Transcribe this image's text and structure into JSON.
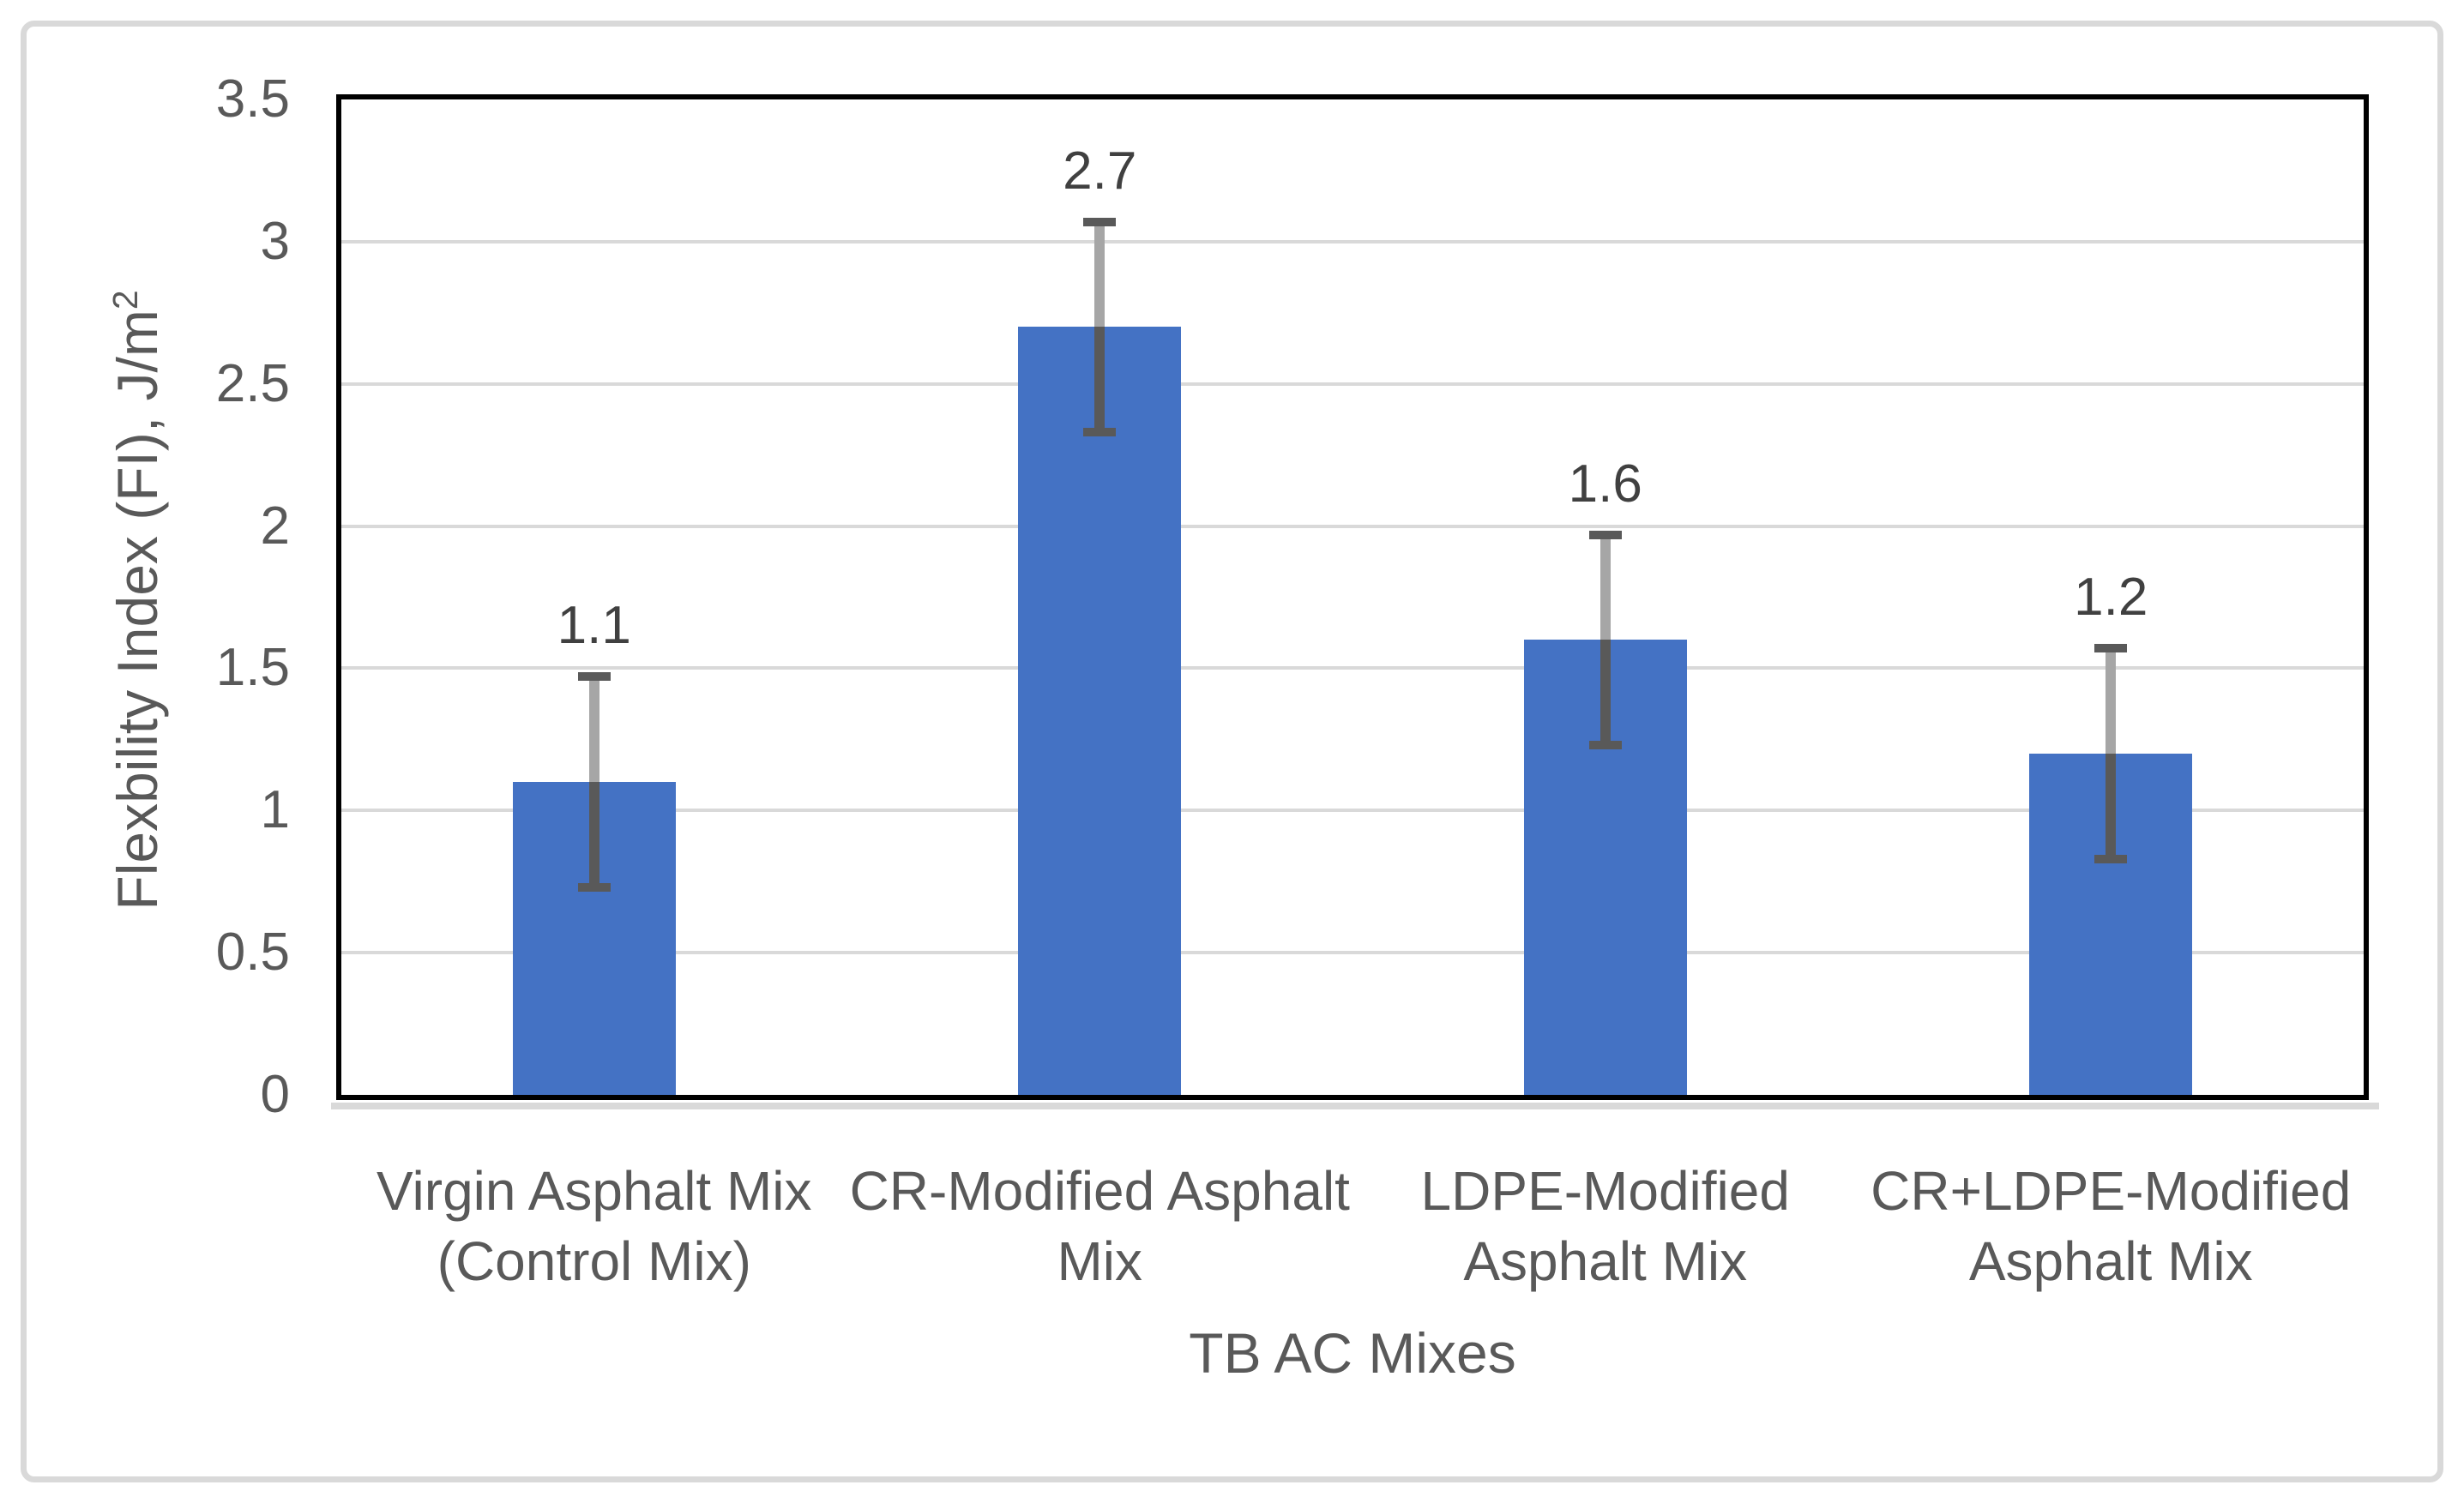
{
  "figure": {
    "background": "#FFFFFF",
    "border_color": "#D9D9D9"
  },
  "chart_data": {
    "type": "bar",
    "title": "",
    "categories": [
      "Virgin Asphalt Mix (Control Mix)",
      "CR-Modified Asphalt Mix",
      "LDPE-Modified Asphalt Mix",
      "CR+LDPE-Modified Asphalt Mix"
    ],
    "category_lines": [
      [
        "Virgin Asphalt Mix",
        "(Control Mix)"
      ],
      [
        "CR-Modified Asphalt",
        "Mix"
      ],
      [
        "LDPE-Modified",
        "Asphalt Mix"
      ],
      [
        "CR+LDPE-Modified",
        "Asphalt Mix"
      ]
    ],
    "values": [
      1.1,
      2.7,
      1.6,
      1.2
    ],
    "data_labels": [
      "1.1",
      "2.7",
      "1.6",
      "1.2"
    ],
    "error_bar": {
      "plus": [
        0.37,
        0.37,
        0.37,
        0.37
      ],
      "minus": [
        0.37,
        0.37,
        0.37,
        0.37
      ]
    },
    "xlabel": "TB AC Mixes",
    "ylabel": "Flexbility Index (FI), J/m²",
    "ylabel_base": "Flexbility Index (FI), J/m",
    "ylabel_sup": "2",
    "ylim": [
      0,
      3.5
    ],
    "ytick_interval": 0.5,
    "ytick_labels": [
      "0",
      "0.5",
      "1",
      "1.5",
      "2",
      "2.5",
      "3",
      "3.5"
    ],
    "grid": "horizontal",
    "legend": "none",
    "colors": {
      "bar_fill": "#4472C4",
      "gridline": "#D9D9D9",
      "plot_border": "#000000",
      "axis_text": "#595959",
      "data_label": "#404040",
      "error_line_outside_bar": "#A6A6A6",
      "error_line_inside_bar": "#595959",
      "error_cap": "#595959",
      "baseline": "#D9D9D9"
    }
  }
}
